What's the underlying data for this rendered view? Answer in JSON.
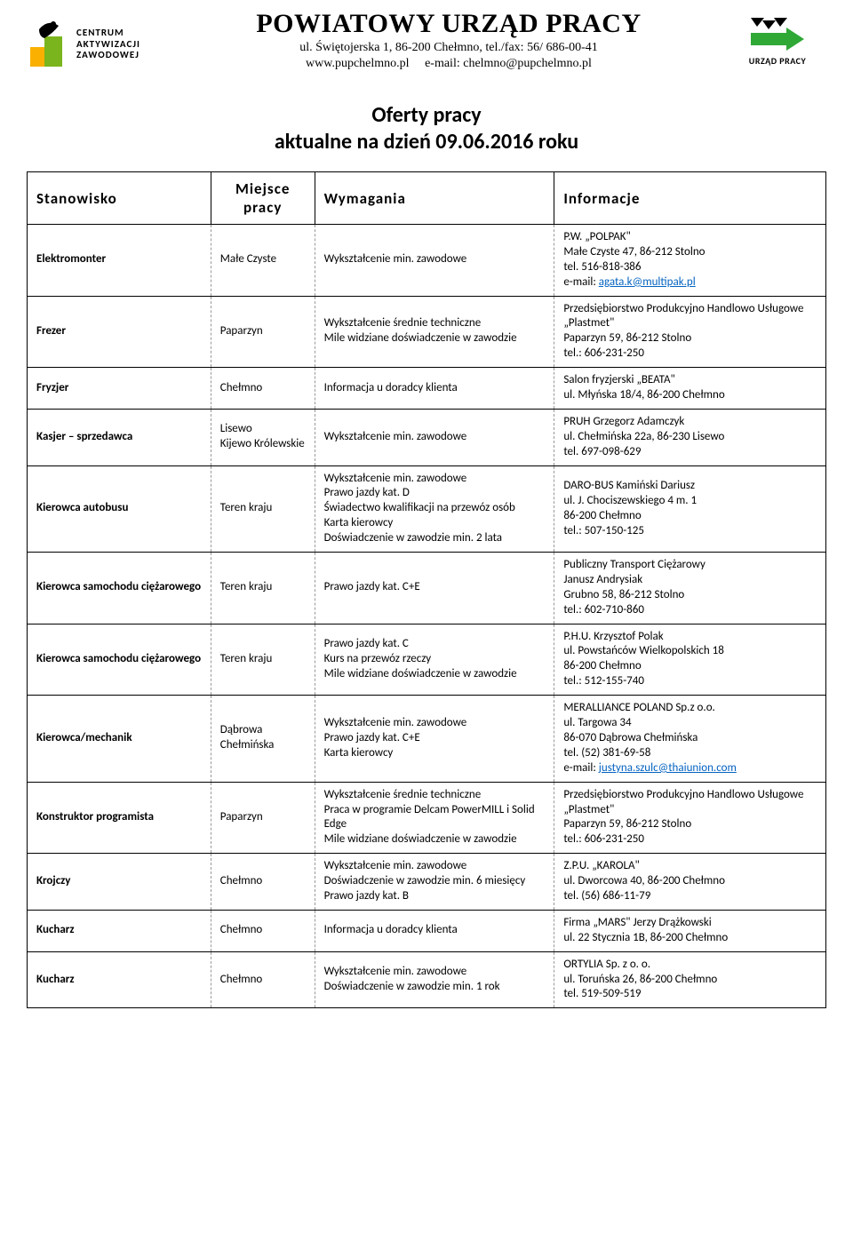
{
  "header": {
    "logo_left_line1": "CENTRUM",
    "logo_left_line2": "AKTYWIZACJI",
    "logo_left_line3": "ZAWODOWEJ",
    "title": "POWIATOWY URZĄD PRACY",
    "sub1": "ul. Świętojerska 1, 86-200 Chełmno, tel./fax: 56/ 686-00-41",
    "sub2_a": "www.pupchelmno.pl",
    "sub2_b": "e-mail: chelmno@pupchelmno.pl",
    "logo_right_text": "URZĄD PRACY"
  },
  "page_title_line1": "Oferty pracy",
  "page_title_line2": "aktualne na dzień 09.06.2016 roku",
  "columns": {
    "stanowisko": "Stanowisko",
    "miejsce_line1": "Miejsce",
    "miejsce_line2": "pracy",
    "wymagania": "Wymagania",
    "informacje": "Informacje"
  },
  "rows": [
    {
      "stanowisko": "Elektromonter",
      "miejsce": "Małe Czyste",
      "wymagania": "Wykształcenie min. zawodowe",
      "informacje": "P.W. „POLPAK\"\nMałe Czyste 47, 86-212 Stolno\ntel. 516-818-386\ne-mail: <a>agata.k@multipak.pl</a>"
    },
    {
      "stanowisko": "Frezer",
      "miejsce": "Paparzyn",
      "wymagania": "Wykształcenie średnie techniczne\nMile widziane doświadczenie w zawodzie",
      "informacje": "Przedsiębiorstwo Produkcyjno Handlowo Usługowe „Plastmet\"\nPaparzyn 59, 86-212 Stolno\ntel.: 606-231-250"
    },
    {
      "stanowisko": "Fryzjer",
      "miejsce": "Chełmno",
      "wymagania": "Informacja u doradcy klienta",
      "informacje": "Salon fryzjerski „BEATA\"\nul. Młyńska 18/4, 86-200 Chełmno"
    },
    {
      "stanowisko": "Kasjer – sprzedawca",
      "miejsce": "Lisewo\nKijewo Królewskie",
      "wymagania": "Wykształcenie min. zawodowe",
      "informacje": "PRUH Grzegorz Adamczyk\nul. Chełmińska 22a, 86-230 Lisewo\ntel. 697-098-629"
    },
    {
      "stanowisko": "Kierowca autobusu",
      "miejsce": "Teren kraju",
      "wymagania": "Wykształcenie min. zawodowe\nPrawo jazdy kat. D\nŚwiadectwo kwalifikacji na przewóz osób\nKarta kierowcy\nDoświadczenie w zawodzie min. 2 lata",
      "informacje": "DARO-BUS Kamiński Dariusz\nul. J. Chociszewskiego 4 m. 1\n86-200 Chełmno\ntel.: 507-150-125"
    },
    {
      "stanowisko": "Kierowca samochodu ciężarowego",
      "miejsce": "Teren kraju",
      "wymagania": "Prawo jazdy kat. C+E",
      "informacje": "Publiczny Transport Ciężarowy\nJanusz Andrysiak\nGrubno 58, 86-212 Stolno\ntel.: 602-710-860"
    },
    {
      "stanowisko": "Kierowca samochodu ciężarowego",
      "miejsce": "Teren kraju",
      "wymagania": "Prawo jazdy kat. C\nKurs na przewóz rzeczy\nMile widziane doświadczenie w zawodzie",
      "informacje": "P.H.U. Krzysztof Polak\nul. Powstańców Wielkopolskich 18\n86-200 Chełmno\ntel.: 512-155-740"
    },
    {
      "stanowisko": "Kierowca/mechanik",
      "miejsce": "Dąbrowa Chełmińska",
      "wymagania": "Wykształcenie min. zawodowe\nPrawo jazdy kat. C+E\nKarta kierowcy",
      "informacje": "MERALLIANCE POLAND Sp.z o.o.\nul. Targowa 34\n86-070 Dąbrowa Chełmińska\ntel. (52) 381-69-58\ne-mail: <a>justyna.szulc@thaiunion.com</a>"
    },
    {
      "stanowisko": "Konstruktor programista",
      "miejsce": "Paparzyn",
      "wymagania": "Wykształcenie średnie techniczne\nPraca w programie Delcam PowerMILL i Solid Edge\nMile widziane doświadczenie w zawodzie",
      "informacje": "Przedsiębiorstwo Produkcyjno Handlowo Usługowe „Plastmet\"\nPaparzyn 59, 86-212 Stolno\ntel.: 606-231-250"
    },
    {
      "stanowisko": "Krojczy",
      "miejsce": "Chełmno",
      "wymagania": "Wykształcenie min. zawodowe\nDoświadczenie w zawodzie min. 6 miesięcy\nPrawo jazdy kat. B",
      "informacje": "Z.P.U. „KAROLA\"\nul. Dworcowa 40, 86-200 Chełmno\ntel. (56) 686-11-79"
    },
    {
      "stanowisko": "Kucharz",
      "miejsce": "Chełmno",
      "wymagania": "Informacja u doradcy klienta",
      "informacje": "Firma „MARS\" Jerzy Drążkowski\nul. 22 Stycznia 1B, 86-200 Chełmno"
    },
    {
      "stanowisko": "Kucharz",
      "miejsce": "Chełmno",
      "wymagania": "Wykształcenie min. zawodowe\nDoświadczenie w zawodzie min. 1 rok",
      "informacje": "ORTYLIA Sp. z o. o.\nul. Toruńska 26, 86-200 Chełmno\ntel. 519-509-519"
    }
  ],
  "style": {
    "accent_green": "#7ab51d",
    "accent_yellow": "#f9b000",
    "link_color": "#0563c1",
    "border_color": "#000000",
    "dash_color": "#999999",
    "font_body": 13,
    "font_header": 17,
    "font_title": 30
  }
}
